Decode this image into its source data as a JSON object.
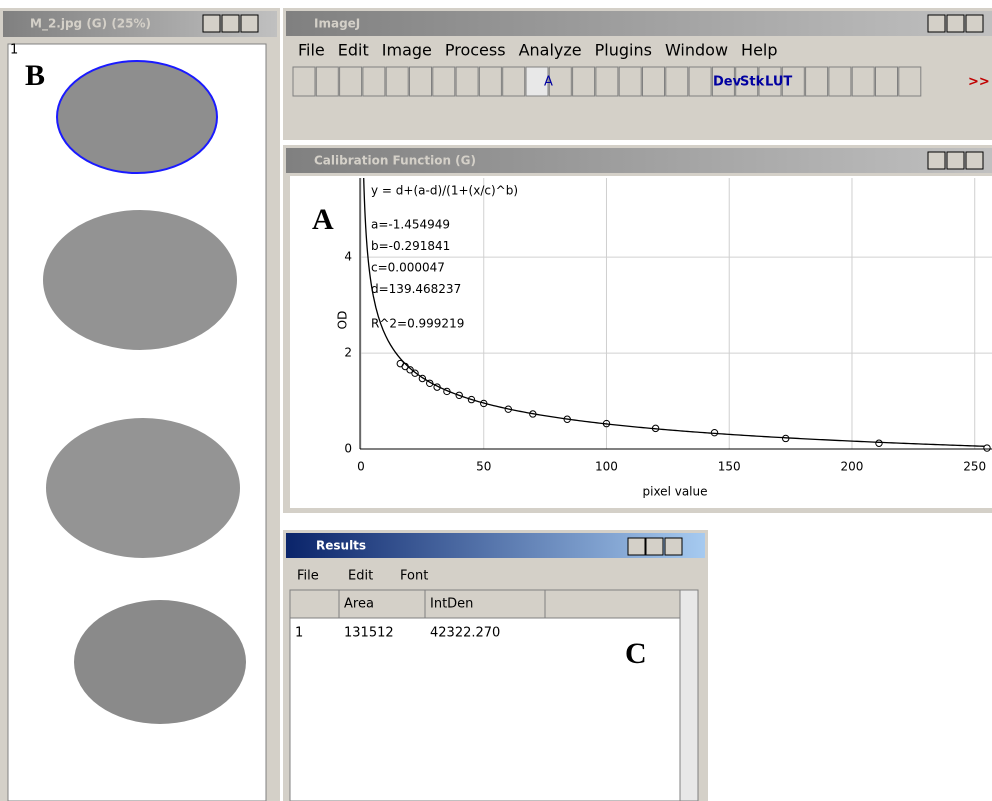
{
  "image_window": {
    "title": "M_2.jpg (G) (25%)",
    "slice": "1",
    "label": "B"
  },
  "imagej": {
    "title": "ImageJ",
    "menu": [
      "File",
      "Edit",
      "Image",
      "Process",
      "Analyze",
      "Plugins",
      "Window",
      "Help"
    ],
    "tools": [
      "A",
      "Dev",
      "Stk",
      "LUT",
      ">>"
    ]
  },
  "calibration": {
    "title": "Calibration Function (G)",
    "label": "A",
    "chart": {
      "type": "scatter",
      "formula": "y = d+(a-d)/(1+(x/c)^b)",
      "params": [
        {
          "value": -1.454949,
          "label": "a=-1.454949"
        },
        {
          "value": -0.291841,
          "label": "b=-0.291841"
        },
        {
          "value": 4.7e-05,
          "label": "c=0.000047"
        },
        {
          "value": 139.468237,
          "label": "d=139.468237"
        }
      ],
      "r2": "R^2=0.999219",
      "xlabel": "pixel value",
      "ylabel": "OD",
      "x": [
        16,
        18,
        20,
        22,
        25,
        28,
        31,
        35,
        40,
        45,
        50,
        60,
        70,
        84,
        100,
        120,
        144,
        173,
        211,
        255
      ],
      "y": [
        1.78,
        1.72,
        1.65,
        1.58,
        1.47,
        1.37,
        1.29,
        1.2,
        1.12,
        1.03,
        0.95,
        0.83,
        0.73,
        0.62,
        0.53,
        0.43,
        0.34,
        0.22,
        0.12,
        0.02
      ],
      "xlim": [
        0,
        255
      ],
      "ylim": [
        0,
        5.65
      ],
      "xticks": [
        0,
        50,
        100,
        150,
        200,
        250
      ],
      "yticks": [
        0,
        2,
        4
      ],
      "grid": true
    }
  },
  "results": {
    "title": "Results",
    "menu": [
      "File",
      "Edit",
      "Font"
    ],
    "columns": [
      "Area",
      "IntDen"
    ],
    "rows": [
      [
        "1",
        "131512",
        "42322.270"
      ]
    ],
    "label": "C"
  }
}
